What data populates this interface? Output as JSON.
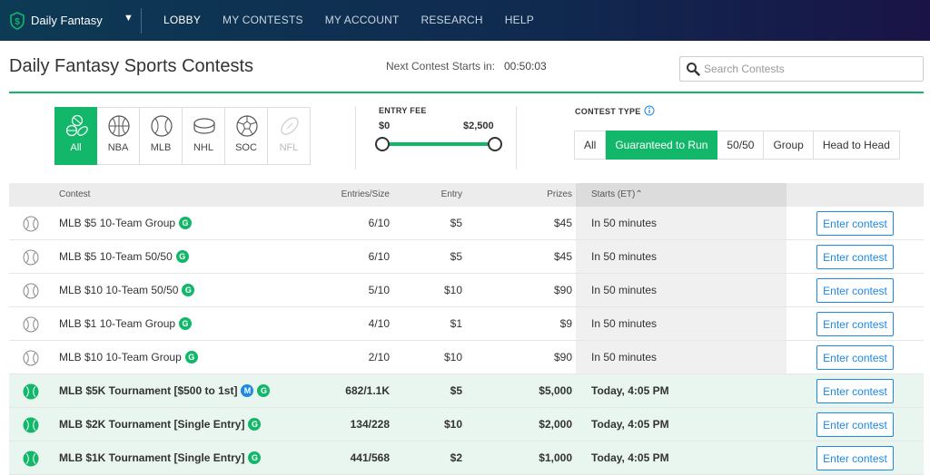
{
  "brand": {
    "name": "Daily Fantasy"
  },
  "nav": [
    {
      "label": "LOBBY",
      "active": true
    },
    {
      "label": "MY CONTESTS"
    },
    {
      "label": "MY ACCOUNT"
    },
    {
      "label": "RESEARCH"
    },
    {
      "label": "HELP"
    }
  ],
  "page": {
    "title": "Daily Fantasy Sports Contests",
    "next_label": "Next Contest Starts in:",
    "next_time": "00:50:03"
  },
  "search": {
    "placeholder": "Search Contests",
    "value": ""
  },
  "sports": [
    {
      "label": "All",
      "icon": "all-sports-icon",
      "active": true
    },
    {
      "label": "NBA",
      "icon": "basketball-icon"
    },
    {
      "label": "MLB",
      "icon": "baseball-icon"
    },
    {
      "label": "NHL",
      "icon": "hockey-puck-icon"
    },
    {
      "label": "SOC",
      "icon": "soccer-ball-icon"
    },
    {
      "label": "NFL",
      "icon": "football-icon",
      "disabled": true
    }
  ],
  "entry_fee": {
    "label": "ENTRY FEE",
    "min": "$0",
    "max": "$2,500"
  },
  "contest_type": {
    "label": "CONTEST TYPE",
    "options": [
      "All",
      "Guaranteed to Run",
      "50/50",
      "Group",
      "Head to Head"
    ],
    "selected": "Guaranteed to Run"
  },
  "table": {
    "headers": {
      "contest": "Contest",
      "entries": "Entries/Size",
      "entry": "Entry",
      "prizes": "Prizes",
      "starts": "Starts (ET)"
    },
    "enter_label": "Enter contest",
    "rows": [
      {
        "name": "MLB $5 10-Team Group",
        "badges": [
          "G"
        ],
        "entries": "6/10",
        "entry": "$5",
        "prizes": "$45",
        "starts": "In 50 minutes",
        "featured": false
      },
      {
        "name": "MLB $5 10-Team 50/50",
        "badges": [
          "G"
        ],
        "entries": "6/10",
        "entry": "$5",
        "prizes": "$45",
        "starts": "In 50 minutes",
        "featured": false
      },
      {
        "name": "MLB $10 10-Team 50/50",
        "badges": [
          "G"
        ],
        "entries": "5/10",
        "entry": "$10",
        "prizes": "$90",
        "starts": "In 50 minutes",
        "featured": false
      },
      {
        "name": "MLB $1 10-Team Group",
        "badges": [
          "G"
        ],
        "entries": "4/10",
        "entry": "$1",
        "prizes": "$9",
        "starts": "In 50 minutes",
        "featured": false
      },
      {
        "name": "MLB $10 10-Team Group",
        "badges": [
          "G"
        ],
        "entries": "2/10",
        "entry": "$10",
        "prizes": "$90",
        "starts": "In 50 minutes",
        "featured": false
      },
      {
        "name": "MLB $5K Tournament [$500 to 1st]",
        "badges": [
          "M",
          "G"
        ],
        "entries": "682/1.1K",
        "entry": "$5",
        "prizes": "$5,000",
        "starts": "Today, 4:05 PM",
        "featured": true
      },
      {
        "name": "MLB $2K Tournament [Single Entry]",
        "badges": [
          "G"
        ],
        "entries": "134/228",
        "entry": "$10",
        "prizes": "$2,000",
        "starts": "Today, 4:05 PM",
        "featured": true
      },
      {
        "name": "MLB $1K Tournament [Single Entry]",
        "badges": [
          "G"
        ],
        "entries": "441/568",
        "entry": "$2",
        "prizes": "$1,000",
        "starts": "Today, 4:05 PM",
        "featured": true
      }
    ]
  },
  "colors": {
    "accent": "#12b76a",
    "link": "#1e88e5",
    "nav_bg": "#10294f"
  }
}
